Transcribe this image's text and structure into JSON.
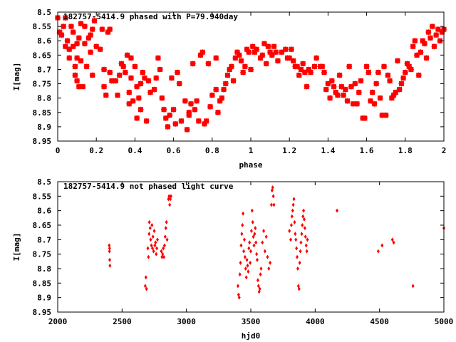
{
  "colors": {
    "points": "#ff0000",
    "axes": "#000000",
    "background": "#ffffff"
  },
  "chart_data": [
    {
      "type": "scatter",
      "title": "182757-5414.9 phased with P=79.940day",
      "xlabel": "phase",
      "ylabel": "I[mag]",
      "xlim": [
        0,
        2
      ],
      "ylim": [
        8.5,
        8.95
      ],
      "y_inverted": true,
      "grid": false,
      "marker": "filled-square-cross",
      "xticks": [
        "0",
        "0.2",
        "0.4",
        "0.6",
        "0.8",
        "1",
        "1.2",
        "1.4",
        "1.6",
        "1.8",
        "2"
      ],
      "yticks": [
        "8.5",
        "8.55",
        "8.6",
        "8.65",
        "8.7",
        "8.75",
        "8.8",
        "8.85",
        "8.9",
        "8.95"
      ],
      "points": [
        [
          0.0,
          8.52
        ],
        [
          0.01,
          8.57
        ],
        [
          0.02,
          8.58
        ],
        [
          0.03,
          8.55
        ],
        [
          0.04,
          8.52
        ],
        [
          0.04,
          8.62
        ],
        [
          0.05,
          8.6
        ],
        [
          0.06,
          8.63
        ],
        [
          0.06,
          8.66
        ],
        [
          0.07,
          8.55
        ],
        [
          0.08,
          8.57
        ],
        [
          0.08,
          8.62
        ],
        [
          0.09,
          8.69
        ],
        [
          0.09,
          8.72
        ],
        [
          0.1,
          8.61
        ],
        [
          0.1,
          8.66
        ],
        [
          0.1,
          8.74
        ],
        [
          0.11,
          8.59
        ],
        [
          0.11,
          8.76
        ],
        [
          0.12,
          8.54
        ],
        [
          0.12,
          8.67
        ],
        [
          0.13,
          8.76
        ],
        [
          0.14,
          8.55
        ],
        [
          0.14,
          8.61
        ],
        [
          0.15,
          8.69
        ],
        [
          0.16,
          8.59
        ],
        [
          0.17,
          8.58
        ],
        [
          0.17,
          8.64
        ],
        [
          0.18,
          8.56
        ],
        [
          0.18,
          8.72
        ],
        [
          0.19,
          8.53
        ],
        [
          0.2,
          8.62
        ],
        [
          0.22,
          8.63
        ],
        [
          0.23,
          8.56
        ],
        [
          0.24,
          8.7
        ],
        [
          0.24,
          8.76
        ],
        [
          0.25,
          8.79
        ],
        [
          0.26,
          8.57
        ],
        [
          0.27,
          8.56
        ],
        [
          0.27,
          8.71
        ],
        [
          0.28,
          8.74
        ],
        [
          0.29,
          8.74
        ],
        [
          0.3,
          8.74
        ],
        [
          0.31,
          8.79
        ],
        [
          0.32,
          8.72
        ],
        [
          0.33,
          8.68
        ],
        [
          0.34,
          8.69
        ],
        [
          0.35,
          8.71
        ],
        [
          0.36,
          8.65
        ],
        [
          0.37,
          8.78
        ],
        [
          0.37,
          8.82
        ],
        [
          0.38,
          8.66
        ],
        [
          0.38,
          8.73
        ],
        [
          0.39,
          8.81
        ],
        [
          0.4,
          8.69
        ],
        [
          0.41,
          8.76
        ],
        [
          0.41,
          8.87
        ],
        [
          0.42,
          8.8
        ],
        [
          0.43,
          8.75
        ],
        [
          0.43,
          8.84
        ],
        [
          0.44,
          8.71
        ],
        [
          0.45,
          8.73
        ],
        [
          0.46,
          8.88
        ],
        [
          0.47,
          8.74
        ],
        [
          0.48,
          8.78
        ],
        [
          0.5,
          8.77
        ],
        [
          0.51,
          8.73
        ],
        [
          0.52,
          8.66
        ],
        [
          0.53,
          8.7
        ],
        [
          0.54,
          8.8
        ],
        [
          0.55,
          8.84
        ],
        [
          0.56,
          8.87
        ],
        [
          0.57,
          8.9
        ],
        [
          0.58,
          8.86
        ],
        [
          0.59,
          8.73
        ],
        [
          0.6,
          8.84
        ],
        [
          0.61,
          8.89
        ],
        [
          0.62,
          8.71
        ],
        [
          0.63,
          8.75
        ],
        [
          0.64,
          8.88
        ],
        [
          0.66,
          8.81
        ],
        [
          0.67,
          8.91
        ],
        [
          0.68,
          8.85
        ],
        [
          0.68,
          8.86
        ],
        [
          0.69,
          8.82
        ],
        [
          0.7,
          8.68
        ],
        [
          0.71,
          8.84
        ],
        [
          0.72,
          8.81
        ],
        [
          0.73,
          8.88
        ],
        [
          0.74,
          8.65
        ],
        [
          0.75,
          8.64
        ],
        [
          0.76,
          8.89
        ],
        [
          0.77,
          8.88
        ],
        [
          0.78,
          8.68
        ],
        [
          0.79,
          8.83
        ],
        [
          0.8,
          8.79
        ],
        [
          0.82,
          8.77
        ],
        [
          0.82,
          8.66
        ],
        [
          0.83,
          8.85
        ],
        [
          0.84,
          8.81
        ],
        [
          0.85,
          8.8
        ],
        [
          0.86,
          8.77
        ],
        [
          0.87,
          8.75
        ],
        [
          0.88,
          8.72
        ],
        [
          0.89,
          8.7
        ],
        [
          0.9,
          8.69
        ],
        [
          0.91,
          8.74
        ],
        [
          0.92,
          8.66
        ],
        [
          0.93,
          8.64
        ],
        [
          0.94,
          8.65
        ],
        [
          0.95,
          8.67
        ],
        [
          0.96,
          8.71
        ],
        [
          0.97,
          8.69
        ],
        [
          0.98,
          8.63
        ],
        [
          0.99,
          8.64
        ],
        [
          1.0,
          8.7
        ],
        [
          1.01,
          8.62
        ],
        [
          1.02,
          8.64
        ],
        [
          1.03,
          8.63
        ],
        [
          1.05,
          8.66
        ],
        [
          1.06,
          8.65
        ],
        [
          1.07,
          8.61
        ],
        [
          1.08,
          8.68
        ],
        [
          1.09,
          8.62
        ],
        [
          1.1,
          8.64
        ],
        [
          1.11,
          8.65
        ],
        [
          1.12,
          8.62
        ],
        [
          1.13,
          8.64
        ],
        [
          1.14,
          8.67
        ],
        [
          1.16,
          8.64
        ],
        [
          1.18,
          8.63
        ],
        [
          1.19,
          8.66
        ],
        [
          1.2,
          8.66
        ],
        [
          1.21,
          8.63
        ],
        [
          1.22,
          8.67
        ],
        [
          1.23,
          8.69
        ],
        [
          1.24,
          8.69
        ],
        [
          1.25,
          8.72
        ],
        [
          1.26,
          8.7
        ],
        [
          1.27,
          8.68
        ],
        [
          1.28,
          8.71
        ],
        [
          1.29,
          8.76
        ],
        [
          1.3,
          8.7
        ],
        [
          1.31,
          8.71
        ],
        [
          1.33,
          8.69
        ],
        [
          1.34,
          8.66
        ],
        [
          1.36,
          8.69
        ],
        [
          1.37,
          8.69
        ],
        [
          1.38,
          8.71
        ],
        [
          1.39,
          8.77
        ],
        [
          1.4,
          8.75
        ],
        [
          1.41,
          8.8
        ],
        [
          1.42,
          8.74
        ],
        [
          1.43,
          8.76
        ],
        [
          1.44,
          8.78
        ],
        [
          1.45,
          8.79
        ],
        [
          1.46,
          8.72
        ],
        [
          1.47,
          8.76
        ],
        [
          1.48,
          8.79
        ],
        [
          1.49,
          8.77
        ],
        [
          1.5,
          8.81
        ],
        [
          1.51,
          8.69
        ],
        [
          1.52,
          8.76
        ],
        [
          1.53,
          8.82
        ],
        [
          1.54,
          8.75
        ],
        [
          1.55,
          8.82
        ],
        [
          1.56,
          8.78
        ],
        [
          1.57,
          8.74
        ],
        [
          1.58,
          8.87
        ],
        [
          1.59,
          8.87
        ],
        [
          1.6,
          8.69
        ],
        [
          1.61,
          8.71
        ],
        [
          1.62,
          8.81
        ],
        [
          1.63,
          8.78
        ],
        [
          1.64,
          8.82
        ],
        [
          1.65,
          8.75
        ],
        [
          1.66,
          8.71
        ],
        [
          1.67,
          8.8
        ],
        [
          1.68,
          8.86
        ],
        [
          1.69,
          8.69
        ],
        [
          1.7,
          8.86
        ],
        [
          1.71,
          8.72
        ],
        [
          1.72,
          8.74
        ],
        [
          1.73,
          8.8
        ],
        [
          1.74,
          8.79
        ],
        [
          1.75,
          8.78
        ],
        [
          1.76,
          8.67
        ],
        [
          1.77,
          8.77
        ],
        [
          1.78,
          8.75
        ],
        [
          1.79,
          8.73
        ],
        [
          1.8,
          8.71
        ],
        [
          1.81,
          8.68
        ],
        [
          1.82,
          8.69
        ],
        [
          1.83,
          8.7
        ],
        [
          1.84,
          8.62
        ],
        [
          1.85,
          8.6
        ],
        [
          1.86,
          8.65
        ],
        [
          1.87,
          8.72
        ],
        [
          1.88,
          8.64
        ],
        [
          1.89,
          8.6
        ],
        [
          1.9,
          8.61
        ],
        [
          1.91,
          8.66
        ],
        [
          1.92,
          8.57
        ],
        [
          1.93,
          8.59
        ],
        [
          1.94,
          8.55
        ],
        [
          1.95,
          8.62
        ],
        [
          1.96,
          8.58
        ],
        [
          1.97,
          8.56
        ],
        [
          1.98,
          8.6
        ],
        [
          1.99,
          8.57
        ],
        [
          2.0,
          8.56
        ]
      ]
    },
    {
      "type": "scatter",
      "title": "182757-5414.9 not phased light curve",
      "xlabel": "hjd0",
      "ylabel": "I[mag]",
      "xlim": [
        2000,
        5000
      ],
      "ylim": [
        8.5,
        8.95
      ],
      "y_inverted": true,
      "grid": false,
      "marker": "filled-diamond",
      "xticks": [
        "2000",
        "2500",
        "3000",
        "3500",
        "4000",
        "4500",
        "5000"
      ],
      "yticks": [
        "8.5",
        "8.55",
        "8.6",
        "8.65",
        "8.7",
        "8.75",
        "8.8",
        "8.85",
        "8.9",
        "8.95"
      ],
      "points": [
        [
          2400,
          8.72
        ],
        [
          2402,
          8.74
        ],
        [
          2404,
          8.77
        ],
        [
          2406,
          8.79
        ],
        [
          2403,
          8.73
        ],
        [
          2680,
          8.86
        ],
        [
          2685,
          8.83
        ],
        [
          2690,
          8.87
        ],
        [
          2700,
          8.73
        ],
        [
          2705,
          8.76
        ],
        [
          2710,
          8.68
        ],
        [
          2712,
          8.64
        ],
        [
          2718,
          8.66
        ],
        [
          2722,
          8.7
        ],
        [
          2728,
          8.72
        ],
        [
          2732,
          8.65
        ],
        [
          2736,
          8.73
        ],
        [
          2740,
          8.69
        ],
        [
          2745,
          8.74
        ],
        [
          2750,
          8.67
        ],
        [
          2755,
          8.72
        ],
        [
          2760,
          8.71
        ],
        [
          2765,
          8.75
        ],
        [
          2770,
          8.73
        ],
        [
          2775,
          8.7
        ],
        [
          2805,
          8.74
        ],
        [
          2810,
          8.76
        ],
        [
          2815,
          8.75
        ],
        [
          2820,
          8.73
        ],
        [
          2825,
          8.76
        ],
        [
          2830,
          8.72
        ],
        [
          2835,
          8.69
        ],
        [
          2840,
          8.66
        ],
        [
          2845,
          8.64
        ],
        [
          2850,
          8.7
        ],
        [
          2860,
          8.56
        ],
        [
          2865,
          8.55
        ],
        [
          2870,
          8.58
        ],
        [
          2875,
          8.56
        ],
        [
          2880,
          8.55
        ],
        [
          3400,
          8.86
        ],
        [
          3405,
          8.89
        ],
        [
          3410,
          8.9
        ],
        [
          3415,
          8.82
        ],
        [
          3420,
          8.78
        ],
        [
          3425,
          8.72
        ],
        [
          3430,
          8.68
        ],
        [
          3435,
          8.65
        ],
        [
          3440,
          8.61
        ],
        [
          3445,
          8.74
        ],
        [
          3450,
          8.7
        ],
        [
          3455,
          8.76
        ],
        [
          3460,
          8.8
        ],
        [
          3465,
          8.83
        ],
        [
          3470,
          8.77
        ],
        [
          3475,
          8.79
        ],
        [
          3480,
          8.81
        ],
        [
          3485,
          8.73
        ],
        [
          3490,
          8.71
        ],
        [
          3495,
          8.78
        ],
        [
          3500,
          8.74
        ],
        [
          3505,
          8.67
        ],
        [
          3510,
          8.6
        ],
        [
          3515,
          8.64
        ],
        [
          3520,
          8.69
        ],
        [
          3525,
          8.72
        ],
        [
          3530,
          8.68
        ],
        [
          3535,
          8.66
        ],
        [
          3540,
          8.71
        ],
        [
          3545,
          8.75
        ],
        [
          3550,
          8.77
        ],
        [
          3555,
          8.84
        ],
        [
          3560,
          8.86
        ],
        [
          3565,
          8.88
        ],
        [
          3570,
          8.87
        ],
        [
          3575,
          8.82
        ],
        [
          3580,
          8.8
        ],
        [
          3590,
          8.71
        ],
        [
          3600,
          8.67
        ],
        [
          3610,
          8.74
        ],
        [
          3620,
          8.69
        ],
        [
          3630,
          8.76
        ],
        [
          3640,
          8.8
        ],
        [
          3650,
          8.78
        ],
        [
          3660,
          8.58
        ],
        [
          3665,
          8.53
        ],
        [
          3670,
          8.52
        ],
        [
          3675,
          8.55
        ],
        [
          3680,
          8.58
        ],
        [
          3800,
          8.67
        ],
        [
          3810,
          8.7
        ],
        [
          3815,
          8.65
        ],
        [
          3820,
          8.62
        ],
        [
          3825,
          8.6
        ],
        [
          3830,
          8.58
        ],
        [
          3835,
          8.56
        ],
        [
          3840,
          8.64
        ],
        [
          3845,
          8.68
        ],
        [
          3850,
          8.7
        ],
        [
          3855,
          8.73
        ],
        [
          3860,
          8.76
        ],
        [
          3865,
          8.8
        ],
        [
          3870,
          8.86
        ],
        [
          3875,
          8.87
        ],
        [
          3880,
          8.78
        ],
        [
          3885,
          8.74
        ],
        [
          3890,
          8.71
        ],
        [
          3895,
          8.68
        ],
        [
          3900,
          8.65
        ],
        [
          3905,
          8.62
        ],
        [
          3910,
          8.6
        ],
        [
          3915,
          8.63
        ],
        [
          3920,
          8.66
        ],
        [
          3925,
          8.69
        ],
        [
          3930,
          8.72
        ],
        [
          3935,
          8.74
        ],
        [
          3940,
          8.7
        ],
        [
          4170,
          8.6
        ],
        [
          4490,
          8.74
        ],
        [
          4520,
          8.72
        ],
        [
          4600,
          8.7
        ],
        [
          4610,
          8.71
        ],
        [
          4760,
          8.86
        ],
        [
          5000,
          8.66
        ]
      ]
    }
  ]
}
